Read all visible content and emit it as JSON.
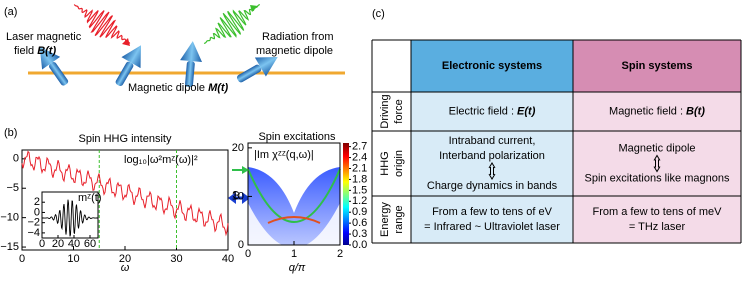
{
  "panel_a": {
    "label": "(a)",
    "laser_lines": [
      "Laser magnetic",
      "field"
    ],
    "laser_symbol": "B(t)",
    "radiation_lines": [
      "Radiation from",
      "magnetic dipole"
    ],
    "dipole_text": "Magnetic dipole",
    "dipole_symbol": "M(t)"
  },
  "panel_b": {
    "label": "(b)",
    "hhg": {
      "title": "Spin HHG intensity",
      "formula": "log₁₀|ω²mᶻ(ω)|²",
      "xlabel": "ω",
      "xlim": [
        0,
        40
      ],
      "xticks": [
        0,
        10,
        20,
        30,
        40
      ],
      "ylim": [
        -15.5,
        1.5
      ],
      "yticks": [
        0,
        {
          "value": -5,
          "label": "−5"
        },
        {
          "value": -10,
          "label": "−10"
        },
        {
          "value": -15,
          "label": "−15"
        }
      ],
      "harmonic_lines": [
        15,
        30
      ],
      "inset": {
        "label": "mᶻ(t)",
        "xlim": [
          0,
          70
        ],
        "xticks": [
          0,
          20,
          40,
          60
        ],
        "ylim": [
          -5,
          4
        ],
        "yticks": [
          {
            "value": -4,
            "label": "−4"
          },
          {
            "value": -2,
            "label": "−2"
          },
          0,
          2
        ]
      }
    },
    "excitations": {
      "title": "Spin excitations",
      "formula": "|Im χᶻᶻ(q,ω)|",
      "xlabel": "q/π",
      "ylabel": "ω",
      "xlim": [
        0,
        2
      ],
      "xticks": [
        0,
        1,
        2
      ],
      "ylim": [
        0,
        21
      ],
      "yticks": [
        0,
        10,
        20
      ],
      "colorbar_lim": [
        0,
        2.8
      ],
      "colorbar_ticks": [
        {
          "value": 0,
          "label": "0.0"
        },
        0.3,
        0.6,
        0.9,
        1.2,
        1.5,
        1.8,
        2.1,
        2.4,
        2.7
      ]
    }
  },
  "panel_c": {
    "label": "(c)",
    "headers": [
      "Electronic systems",
      "Spin systems"
    ],
    "rows": [
      {
        "name": [
          "Driving",
          "force"
        ],
        "electronic": {
          "text": "Electric field :",
          "symbol": "E(t)"
        },
        "spin": {
          "text": "Magnetic field :",
          "symbol": "B(t)"
        }
      },
      {
        "name": [
          "HHG",
          "origin"
        ],
        "electronic": {
          "lines": [
            "Intraband current,",
            "Interband polarization"
          ],
          "result": "Charge dynamics in bands"
        },
        "spin": {
          "lines": [
            "Magnetic dipole"
          ],
          "result": "Spin excitations like magnons"
        }
      },
      {
        "name": [
          "Energy",
          "range"
        ],
        "electronic": {
          "lines": [
            "From a few to tens of eV",
            "= Infrared ~ Ultraviolet laser"
          ]
        },
        "spin": {
          "lines": [
            "From a few to tens of meV",
            "= THz laser"
          ]
        }
      }
    ]
  }
}
